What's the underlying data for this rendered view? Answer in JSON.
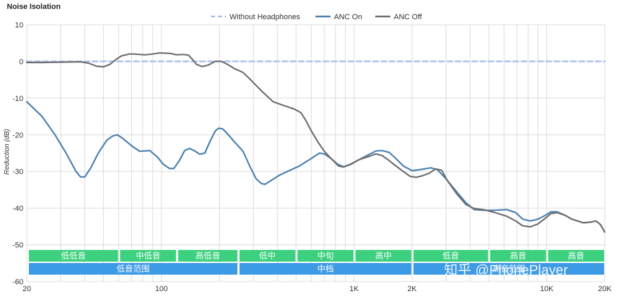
{
  "chart_data": {
    "type": "line",
    "title": "Noise Isolation",
    "xlabel": "",
    "ylabel": "Reduction (dB)",
    "xscale": "log",
    "xlim": [
      20,
      20000
    ],
    "ylim": [
      -60,
      10
    ],
    "grid": true,
    "legend_position": "top-center",
    "x_ticks": [
      {
        "value": 20,
        "label": "20"
      },
      {
        "value": 100,
        "label": "100"
      },
      {
        "value": 1000,
        "label": "1K"
      },
      {
        "value": 2000,
        "label": "2K"
      },
      {
        "value": 10000,
        "label": "10K"
      },
      {
        "value": 20000,
        "label": "20K"
      }
    ],
    "y_ticks": [
      10,
      0,
      -10,
      -20,
      -30,
      -40,
      -50,
      -60
    ],
    "series": [
      {
        "name": "Without Headphones",
        "color": "#a9bff0",
        "style": "dashed",
        "points": [
          [
            20,
            0
          ],
          [
            20000,
            0
          ]
        ]
      },
      {
        "name": "ANC On",
        "color": "#4a7fb0",
        "style": "solid",
        "points": [
          [
            20,
            -11
          ],
          [
            24,
            -15
          ],
          [
            28,
            -20
          ],
          [
            32,
            -25
          ],
          [
            36,
            -30
          ],
          [
            38,
            -31.5
          ],
          [
            40,
            -31.5
          ],
          [
            43,
            -29
          ],
          [
            47,
            -25
          ],
          [
            52,
            -21.5
          ],
          [
            56,
            -20.3
          ],
          [
            59,
            -20
          ],
          [
            63,
            -21
          ],
          [
            70,
            -23
          ],
          [
            77,
            -24.5
          ],
          [
            87,
            -24.3
          ],
          [
            95,
            -26
          ],
          [
            102,
            -28
          ],
          [
            110,
            -29.2
          ],
          [
            116,
            -29.2
          ],
          [
            124,
            -27
          ],
          [
            132,
            -24.3
          ],
          [
            140,
            -23.7
          ],
          [
            150,
            -24.5
          ],
          [
            158,
            -25.3
          ],
          [
            168,
            -25
          ],
          [
            178,
            -22
          ],
          [
            190,
            -19
          ],
          [
            198,
            -18.2
          ],
          [
            208,
            -18.4
          ],
          [
            220,
            -19.7
          ],
          [
            240,
            -22
          ],
          [
            265,
            -24.5
          ],
          [
            290,
            -29
          ],
          [
            310,
            -32
          ],
          [
            330,
            -33.3
          ],
          [
            345,
            -33.5
          ],
          [
            370,
            -32.5
          ],
          [
            410,
            -31
          ],
          [
            450,
            -30
          ],
          [
            520,
            -28.5
          ],
          [
            590,
            -26.7
          ],
          [
            660,
            -25
          ],
          [
            700,
            -25.2
          ],
          [
            760,
            -26.5
          ],
          [
            820,
            -28
          ],
          [
            880,
            -28.7
          ],
          [
            960,
            -28.1
          ],
          [
            1060,
            -26.8
          ],
          [
            1180,
            -25.5
          ],
          [
            1300,
            -24.4
          ],
          [
            1400,
            -24.3
          ],
          [
            1520,
            -24.8
          ],
          [
            1650,
            -26.5
          ],
          [
            1800,
            -28.5
          ],
          [
            2000,
            -29.8
          ],
          [
            2200,
            -29.5
          ],
          [
            2500,
            -29
          ],
          [
            2700,
            -29.5
          ],
          [
            3000,
            -32
          ],
          [
            3400,
            -35.5
          ],
          [
            3800,
            -38.5
          ],
          [
            4200,
            -40.4
          ],
          [
            4700,
            -40.6
          ],
          [
            5300,
            -40.6
          ],
          [
            6200,
            -40.4
          ],
          [
            6900,
            -41.2
          ],
          [
            7500,
            -43
          ],
          [
            8200,
            -43.5
          ],
          [
            9000,
            -43
          ],
          [
            9800,
            -42
          ],
          [
            10500,
            -41
          ],
          [
            11300,
            -41
          ],
          [
            12500,
            -42
          ],
          [
            13500,
            -43
          ],
          [
            15500,
            -44
          ],
          [
            17000,
            -43.8
          ],
          [
            18000,
            -43.5
          ],
          [
            19000,
            -44.5
          ],
          [
            20000,
            -46.5
          ]
        ]
      },
      {
        "name": "ANC Off",
        "color": "#6e6e6e",
        "style": "solid",
        "points": [
          [
            20,
            -0.3
          ],
          [
            24,
            -0.3
          ],
          [
            30,
            -0.2
          ],
          [
            38,
            -0.1
          ],
          [
            42,
            -0.5
          ],
          [
            46,
            -1.3
          ],
          [
            50,
            -1.5
          ],
          [
            54,
            -0.8
          ],
          [
            58,
            0.5
          ],
          [
            62,
            1.5
          ],
          [
            68,
            2
          ],
          [
            72,
            2
          ],
          [
            82,
            1.8
          ],
          [
            90,
            2
          ],
          [
            98,
            2.3
          ],
          [
            110,
            2.2
          ],
          [
            120,
            1.8
          ],
          [
            130,
            1.9
          ],
          [
            138,
            1.7
          ],
          [
            145,
            0.5
          ],
          [
            152,
            -0.8
          ],
          [
            162,
            -1.4
          ],
          [
            175,
            -1
          ],
          [
            190,
            0
          ],
          [
            205,
            0
          ],
          [
            220,
            -0.8
          ],
          [
            240,
            -2
          ],
          [
            265,
            -3
          ],
          [
            290,
            -5
          ],
          [
            330,
            -8
          ],
          [
            380,
            -11
          ],
          [
            430,
            -12
          ],
          [
            490,
            -13
          ],
          [
            530,
            -14
          ],
          [
            560,
            -16
          ],
          [
            600,
            -19
          ],
          [
            650,
            -22
          ],
          [
            700,
            -24.5
          ],
          [
            760,
            -26.5
          ],
          [
            830,
            -28.5
          ],
          [
            880,
            -28.8
          ],
          [
            960,
            -28
          ],
          [
            1060,
            -26.8
          ],
          [
            1180,
            -26
          ],
          [
            1250,
            -25.5
          ],
          [
            1300,
            -25.2
          ],
          [
            1400,
            -25.7
          ],
          [
            1500,
            -26.8
          ],
          [
            1650,
            -28.5
          ],
          [
            1800,
            -30
          ],
          [
            1950,
            -31.3
          ],
          [
            2100,
            -31.6
          ],
          [
            2250,
            -31.2
          ],
          [
            2450,
            -30.5
          ],
          [
            2650,
            -29.3
          ],
          [
            2850,
            -29.7
          ],
          [
            3050,
            -32.5
          ],
          [
            3400,
            -36
          ],
          [
            3800,
            -39
          ],
          [
            4200,
            -40.1
          ],
          [
            4700,
            -40.4
          ],
          [
            5300,
            -41.1
          ],
          [
            6200,
            -42.2
          ],
          [
            6900,
            -43.5
          ],
          [
            7500,
            -44.8
          ],
          [
            8200,
            -45.1
          ],
          [
            9000,
            -44.3
          ],
          [
            9800,
            -42.8
          ],
          [
            10500,
            -41.5
          ],
          [
            11300,
            -41.2
          ],
          [
            12500,
            -42
          ],
          [
            13500,
            -43
          ],
          [
            15500,
            -44
          ],
          [
            17000,
            -43.8
          ],
          [
            18000,
            -43.5
          ],
          [
            19000,
            -44.5
          ],
          [
            20000,
            -46.5
          ]
        ]
      }
    ]
  },
  "bands": {
    "top": [
      {
        "label": "低低音",
        "from": 20,
        "to": 60
      },
      {
        "label": "中低音",
        "from": 60,
        "to": 120
      },
      {
        "label": "高低音",
        "from": 120,
        "to": 250
      },
      {
        "label": "低中",
        "from": 250,
        "to": 500
      },
      {
        "label": "中旬",
        "from": 500,
        "to": 1000
      },
      {
        "label": "高中",
        "from": 1000,
        "to": 2000
      },
      {
        "label": "低音",
        "from": 2000,
        "to": 5000
      },
      {
        "label": "高音",
        "from": 5000,
        "to": 10000
      },
      {
        "label": "高音",
        "from": 10000,
        "to": 20000
      }
    ],
    "bottom": [
      {
        "label": "低音范围",
        "from": 20,
        "to": 250
      },
      {
        "label": "中档",
        "from": 250,
        "to": 2000
      },
      {
        "label": "高音范围",
        "from": 2000,
        "to": 20000
      }
    ],
    "top_color": "#3dd17f",
    "bottom_color": "#3d9be6"
  },
  "watermark": {
    "text": "知乎 @PhonePlayer"
  }
}
